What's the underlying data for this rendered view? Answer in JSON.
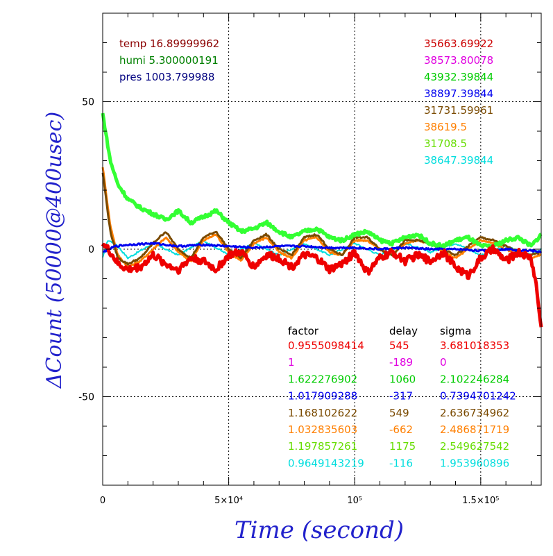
{
  "chart_data": {
    "type": "line",
    "xlabel": "Time (second)",
    "ylabel": "ΔCount (50000@400usec)",
    "xlim": [
      0,
      174000
    ],
    "ylim": [
      -80,
      80
    ],
    "x_ticks": [
      {
        "value": 0,
        "label": "0"
      },
      {
        "value": 50000,
        "label": "5×10⁴"
      },
      {
        "value": 100000,
        "label": "10⁵"
      },
      {
        "value": 150000,
        "label": "1.5×10⁵"
      }
    ],
    "y_ticks": [
      {
        "value": 50,
        "label": "50"
      },
      {
        "value": 0,
        "label": "0"
      },
      {
        "value": -50,
        "label": "-50"
      }
    ],
    "grid": "dotted at major ticks",
    "env_labels": [
      {
        "text": "temp 16.89999962",
        "color": "#8b0000"
      },
      {
        "text": "humi 5.300000191",
        "color": "#008000"
      },
      {
        "text": "pres 1003.799988",
        "color": "#00007f"
      }
    ],
    "means": [
      {
        "text": "35663.69922",
        "color": "#cc0000"
      },
      {
        "text": "38573.80078",
        "color": "#e000e0"
      },
      {
        "text": "43932.39844",
        "color": "#00cc00"
      },
      {
        "text": "38897.39844",
        "color": "#0000ee"
      },
      {
        "text": "31731.59961",
        "color": "#7a4a00"
      },
      {
        "text": "38619.5",
        "color": "#ff7f00"
      },
      {
        "text": "31708.5",
        "color": "#66dd00"
      },
      {
        "text": "38647.39844",
        "color": "#00dddd"
      }
    ],
    "table": {
      "headers": [
        "factor",
        "delay",
        "sigma"
      ],
      "rows": [
        {
          "factor": "0.9555098414",
          "delay": "545",
          "sigma": "3.681018353",
          "color": "#ee0000"
        },
        {
          "factor": "1",
          "delay": "-189",
          "sigma": "0",
          "color": "#e000e0"
        },
        {
          "factor": "1.622276902",
          "delay": "1060",
          "sigma": "2.102246284",
          "color": "#00cc00"
        },
        {
          "factor": "1.017909288",
          "delay": "-317",
          "sigma": "0.7394701242",
          "color": "#0000ee"
        },
        {
          "factor": "1.168102622",
          "delay": "549",
          "sigma": "2.636734962",
          "color": "#7a4a00"
        },
        {
          "factor": "1.032835603",
          "delay": "-662",
          "sigma": "2.486871719",
          "color": "#ff7f00"
        },
        {
          "factor": "1.197857261",
          "delay": "1175",
          "sigma": "2.549627542",
          "color": "#66dd00"
        },
        {
          "factor": "0.9649143219",
          "delay": "-116",
          "sigma": "1.953960896",
          "color": "#00dddd"
        }
      ]
    },
    "series": [
      {
        "color": "#00dddd",
        "x": [
          0,
          2000,
          5000,
          10000,
          20000,
          30000,
          40000,
          50000,
          60000,
          70000,
          80000,
          90000,
          100000,
          110000,
          120000,
          130000,
          140000,
          150000,
          160000,
          170000,
          174000
        ],
        "y": [
          -3,
          3,
          2,
          -3,
          2,
          -2,
          3,
          -2,
          2,
          -2,
          2,
          -2,
          2,
          -2,
          2,
          -1,
          2,
          -2,
          1,
          -2,
          0
        ]
      },
      {
        "color": "#ff7f00",
        "x": [
          0,
          3000,
          6000,
          10000,
          15000,
          20000,
          25000,
          30000,
          35000,
          40000,
          45000,
          50000,
          55000,
          60000,
          65000,
          70000,
          75000,
          80000,
          85000,
          90000,
          95000,
          100000,
          105000,
          110000,
          115000,
          120000,
          125000,
          130000,
          135000,
          140000,
          145000,
          150000,
          155000,
          160000,
          165000,
          170000,
          174000
        ],
        "y": [
          28,
          8,
          -2,
          -6,
          -4,
          0,
          4,
          -1,
          -4,
          3,
          5,
          -1,
          -4,
          2,
          4,
          -1,
          -3,
          3,
          4,
          -1,
          -2,
          3,
          3,
          0,
          -2,
          2,
          3,
          2,
          -1,
          -3,
          0,
          3,
          2,
          0,
          -2,
          -3,
          -2
        ]
      },
      {
        "color": "#7a4a00",
        "x": [
          0,
          3000,
          6000,
          10000,
          15000,
          20000,
          25000,
          30000,
          35000,
          40000,
          45000,
          50000,
          55000,
          60000,
          65000,
          70000,
          75000,
          80000,
          85000,
          90000,
          95000,
          100000,
          105000,
          110000,
          115000,
          120000,
          125000,
          130000,
          135000,
          140000,
          145000,
          150000,
          155000,
          160000,
          165000,
          170000,
          174000
        ],
        "y": [
          26,
          6,
          -3,
          -5,
          -3,
          2,
          6,
          0,
          -3,
          4,
          6,
          0,
          -3,
          3,
          5,
          0,
          -2,
          4,
          5,
          0,
          -2,
          4,
          4,
          0,
          -2,
          3,
          3,
          2,
          0,
          -2,
          1,
          4,
          3,
          1,
          -1,
          -2,
          -1
        ]
      },
      {
        "color": "#33ff33",
        "x": [
          0,
          3000,
          6000,
          10000,
          15000,
          20000,
          25000,
          30000,
          35000,
          40000,
          45000,
          50000,
          55000,
          60000,
          65000,
          70000,
          75000,
          80000,
          85000,
          90000,
          95000,
          100000,
          105000,
          110000,
          115000,
          120000,
          125000,
          130000,
          135000,
          140000,
          145000,
          150000,
          155000,
          160000,
          165000,
          170000,
          174000
        ],
        "y": [
          46,
          30,
          22,
          17,
          14,
          12,
          10,
          13,
          9,
          11,
          13,
          9,
          6,
          7,
          9,
          6,
          4,
          6,
          7,
          4,
          3,
          5,
          6,
          3,
          2,
          4,
          5,
          2,
          1,
          3,
          4,
          1,
          1,
          3,
          4,
          1,
          5
        ]
      },
      {
        "color": "#0000ee",
        "x": [
          0,
          5000,
          10000,
          20000,
          30000,
          40000,
          50000,
          60000,
          70000,
          80000,
          90000,
          100000,
          110000,
          120000,
          130000,
          140000,
          150000,
          160000,
          170000,
          174000
        ],
        "y": [
          -1,
          1,
          1.5,
          2,
          1,
          1.5,
          1,
          0.5,
          1,
          1,
          0.5,
          0.5,
          0,
          0.5,
          0,
          0,
          -0.5,
          0,
          -0.5,
          -1
        ]
      },
      {
        "color": "#ee0000",
        "x": [
          0,
          3000,
          6000,
          10000,
          15000,
          20000,
          25000,
          30000,
          35000,
          40000,
          45000,
          50000,
          55000,
          60000,
          65000,
          70000,
          75000,
          80000,
          85000,
          90000,
          95000,
          100000,
          105000,
          110000,
          115000,
          120000,
          125000,
          130000,
          135000,
          140000,
          145000,
          150000,
          155000,
          160000,
          165000,
          170000,
          172000,
          174000
        ],
        "y": [
          2,
          -1,
          -5,
          -7,
          -6,
          -2,
          -5,
          -7,
          -3,
          -4,
          -7,
          -2,
          -1,
          -6,
          -2,
          -3,
          -6,
          -2,
          -3,
          -7,
          -5,
          -1,
          -8,
          -3,
          -1,
          -4,
          -2,
          -4,
          -1,
          -6,
          -9,
          -3,
          0,
          -4,
          -1,
          -3,
          -12,
          -27
        ]
      }
    ]
  }
}
